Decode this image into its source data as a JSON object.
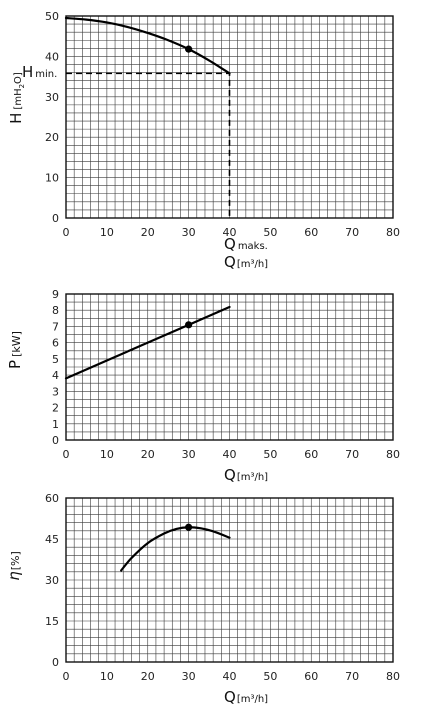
{
  "chart_data": [
    {
      "type": "line",
      "y_symbol": "H",
      "y_unit_pre": "[mH",
      "y_unit_sub": "2",
      "y_unit_post": "O]",
      "x_symbol": "Q",
      "x_unit": "[m³/h]",
      "xlim": [
        0,
        80
      ],
      "ylim": [
        0,
        50
      ],
      "x_ticks": [
        0,
        10,
        20,
        30,
        40,
        50,
        60,
        70,
        80
      ],
      "y_ticks": [
        0,
        10,
        20,
        30,
        40,
        50
      ],
      "x_minor_step": 2,
      "y_minor_step": 2,
      "series": [
        {
          "x": [
            0,
            5,
            10,
            15,
            20,
            25,
            30,
            35,
            40
          ],
          "y": [
            49.5,
            49.1,
            48.4,
            47.3,
            45.8,
            44.0,
            41.8,
            39.0,
            35.8
          ]
        }
      ],
      "marker": {
        "x": 30,
        "y": 41.8
      },
      "annotations": {
        "h_min_label": "H",
        "h_min_sub": "min.",
        "h_min_value": 35.8,
        "q_max_label": "Q",
        "q_max_sub": "maks.",
        "q_max_value": 40
      }
    },
    {
      "type": "line",
      "y_symbol": "P",
      "y_unit": "[kW]",
      "x_symbol": "Q",
      "x_unit": "[m³/h]",
      "xlim": [
        0,
        80
      ],
      "ylim": [
        0,
        9
      ],
      "x_ticks": [
        0,
        10,
        20,
        30,
        40,
        50,
        60,
        70,
        80
      ],
      "y_ticks": [
        0,
        1,
        2,
        3,
        4,
        5,
        6,
        7,
        8,
        9
      ],
      "x_minor_step": 2,
      "y_minor_step": 0.5,
      "series": [
        {
          "x": [
            0,
            10,
            20,
            30,
            40
          ],
          "y": [
            3.8,
            4.9,
            6.0,
            7.1,
            8.2
          ]
        }
      ],
      "marker": {
        "x": 30,
        "y": 7.1
      }
    },
    {
      "type": "line",
      "y_symbol": "η",
      "y_unit": "[%]",
      "x_symbol": "Q",
      "x_unit": "[m³/h]",
      "xlim": [
        0,
        80
      ],
      "ylim": [
        0,
        60
      ],
      "x_ticks": [
        0,
        10,
        20,
        30,
        40,
        50,
        60,
        70,
        80
      ],
      "y_ticks": [
        0,
        15,
        30,
        45,
        60
      ],
      "x_minor_step": 2,
      "y_minor_step": 3,
      "series": [
        {
          "x": [
            13.5,
            16,
            20,
            24,
            27,
            30,
            33,
            36,
            40
          ],
          "y": [
            33.5,
            38.0,
            43.5,
            47.0,
            48.7,
            49.3,
            48.9,
            47.8,
            45.5
          ]
        }
      ],
      "marker": {
        "x": 30,
        "y": 49.3
      }
    }
  ]
}
